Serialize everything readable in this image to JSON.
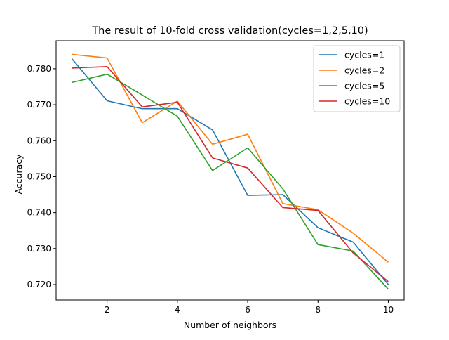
{
  "chart_data": {
    "type": "line",
    "title": "The result of 10-fold cross validation(cycles=1,2,5,10)",
    "xlabel": "Number of neighbors",
    "ylabel": "Accuracy",
    "xlim": [
      0.55,
      10.45
    ],
    "ylim": [
      0.7157,
      0.7878
    ],
    "xticks": [
      2,
      4,
      6,
      8,
      10
    ],
    "yticks": [
      0.72,
      0.73,
      0.74,
      0.75,
      0.76,
      0.77,
      0.78
    ],
    "ytick_labels": [
      "0.720",
      "0.730",
      "0.740",
      "0.750",
      "0.760",
      "0.770",
      "0.780"
    ],
    "grid": false,
    "legend_position": "top-right",
    "x": [
      1,
      2,
      3,
      4,
      5,
      6,
      7,
      8,
      9,
      10
    ],
    "series": [
      {
        "name": "cycles=1",
        "color": "#1f77b4",
        "values": [
          0.7828,
          0.7711,
          0.7689,
          0.7689,
          0.763,
          0.7448,
          0.745,
          0.7358,
          0.7318,
          0.72
        ]
      },
      {
        "name": "cycles=2",
        "color": "#ff7f0e",
        "values": [
          0.784,
          0.783,
          0.765,
          0.771,
          0.759,
          0.7618,
          0.7425,
          0.7408,
          0.7343,
          0.7262
        ]
      },
      {
        "name": "cycles=5",
        "color": "#2ca02c",
        "values": [
          0.7762,
          0.7785,
          0.7727,
          0.7668,
          0.7517,
          0.758,
          0.7466,
          0.7311,
          0.7293,
          0.7187
        ]
      },
      {
        "name": "cycles=10",
        "color": "#d62728",
        "values": [
          0.7802,
          0.7806,
          0.7694,
          0.7707,
          0.7552,
          0.7524,
          0.7414,
          0.7406,
          0.7288,
          0.7208
        ]
      }
    ]
  }
}
